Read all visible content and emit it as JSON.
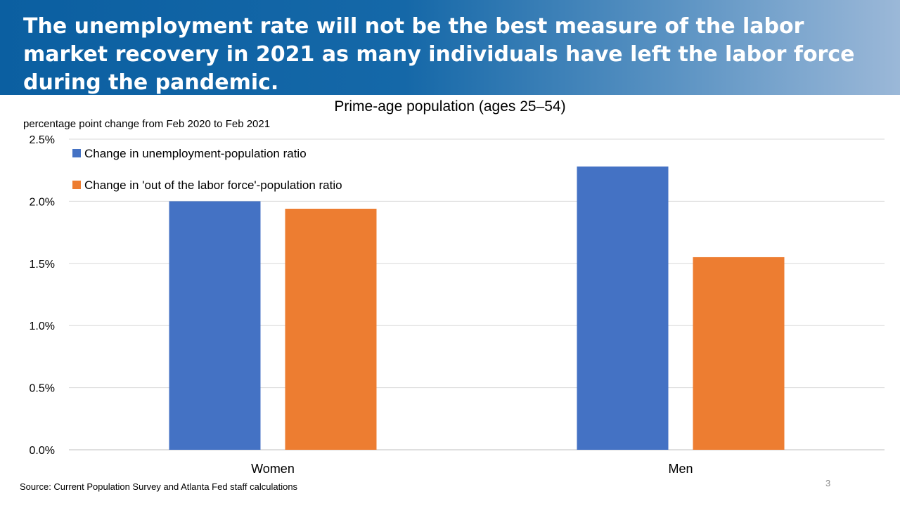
{
  "slide": {
    "title": "The unemployment rate will not be the best measure of the labor market recovery in 2021 as many individuals have left the labor force during the pandemic.",
    "source": "Source: Current Population Survey and Atlanta Fed staff calculations",
    "page_number": "3",
    "header_color": "#0b5fa1"
  },
  "chart_data": {
    "type": "bar",
    "title": "Prime-age population (ages 25–54)",
    "units_label": "percentage point change from Feb 2020 to Feb 2021",
    "categories": [
      "Women",
      "Men"
    ],
    "series": [
      {
        "name": "Change in unemployment-population ratio",
        "color": "#4472c4",
        "values": [
          2.0,
          2.28
        ]
      },
      {
        "name": "Change in 'out of the labor force'-population ratio",
        "color": "#ed7d31",
        "values": [
          1.94,
          1.55
        ]
      }
    ],
    "ylim": [
      0,
      2.5
    ],
    "yticks": [
      {
        "value": 0,
        "label": "0.0%"
      },
      {
        "value": 0.5,
        "label": "0.5%"
      },
      {
        "value": 1.0,
        "label": "1.0%"
      },
      {
        "value": 1.5,
        "label": "1.5%"
      },
      {
        "value": 2.0,
        "label": "2.0%"
      },
      {
        "value": 2.5,
        "label": "2.5%"
      }
    ],
    "grid": true,
    "legend_position": "top-left"
  }
}
